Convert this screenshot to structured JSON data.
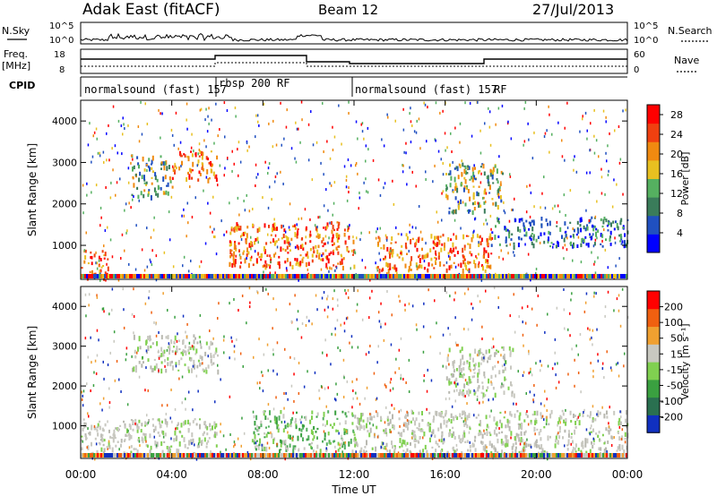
{
  "header": {
    "station": "Adak East (fitACF)",
    "beam": "Beam 12",
    "date": "27/Jul/2013"
  },
  "strip_labels": {
    "nsky": "N.Sky",
    "nsearch": "N.Search",
    "freq_line1": "Freq.",
    "freq_line2": "[MHz]",
    "nave": "Nave",
    "cpid": "CPID"
  },
  "noise_axis": {
    "top": "10^5",
    "bottom": "10^0",
    "right_top": "10^5",
    "right_bottom": "10^0"
  },
  "freq_axis": {
    "left_ticks": [
      "18",
      "8"
    ],
    "right_ticks": [
      "60",
      "0"
    ]
  },
  "cpid_segments": [
    {
      "label": "normalsound (fast) 157",
      "start_hour": 0,
      "end_hour": 6,
      "suffix": "RF"
    },
    {
      "label": "rbsp 200 RF",
      "start_hour": 6,
      "end_hour": 12
    },
    {
      "label": "normalsound (fast) 157",
      "start_hour": 12,
      "end_hour": 24,
      "suffix": "RF"
    }
  ],
  "chart_data": [
    {
      "type": "heatmap",
      "ylabel": "Slant Range [km]",
      "xlabel": "Time UT",
      "x_ticks": [
        "00:00",
        "04:00",
        "08:00",
        "12:00",
        "16:00",
        "20:00",
        "00:00"
      ],
      "y_ticks": [
        "1000",
        "2000",
        "3000",
        "4000"
      ],
      "ylim": [
        180,
        4500
      ],
      "xlim_hours": [
        0,
        24
      ],
      "colorbar": {
        "label": "Power [dB]",
        "ticks": [
          "4",
          "8",
          "12",
          "16",
          "20",
          "24",
          "28"
        ],
        "range": [
          0,
          30
        ],
        "colors": [
          "#0000ff",
          "#2050c0",
          "#3a7c5a",
          "#55b060",
          "#e8c020",
          "#f08a10",
          "#f04010",
          "#ff0000"
        ]
      },
      "echo_regions": [
        {
          "t0": 0.0,
          "t1": 1.2,
          "r0": 200,
          "r1": 900,
          "level": "high"
        },
        {
          "t0": 2.2,
          "t1": 4.0,
          "r0": 2200,
          "r1": 3200,
          "level": "medium"
        },
        {
          "t0": 4.0,
          "t1": 6.0,
          "r0": 2600,
          "r1": 3300,
          "level": "high"
        },
        {
          "t0": 6.5,
          "t1": 12.0,
          "r0": 500,
          "r1": 1600,
          "level": "high"
        },
        {
          "t0": 13.0,
          "t1": 18.0,
          "r0": 400,
          "r1": 1300,
          "level": "high"
        },
        {
          "t0": 16.0,
          "t1": 18.5,
          "r0": 1800,
          "r1": 3000,
          "level": "medium"
        },
        {
          "t0": 18.0,
          "t1": 24.0,
          "r0": 1000,
          "r1": 1700,
          "level": "low"
        }
      ]
    },
    {
      "type": "heatmap",
      "ylabel": "Slant Range [km]",
      "xlabel": "Time UT",
      "x_ticks": [
        "00:00",
        "04:00",
        "08:00",
        "12:00",
        "16:00",
        "20:00",
        "00:00"
      ],
      "y_ticks": [
        "1000",
        "2000",
        "3000",
        "4000"
      ],
      "ylim": [
        180,
        4500
      ],
      "xlim_hours": [
        0,
        24
      ],
      "colorbar": {
        "label": "Velocity [m s⁻¹]",
        "ticks": [
          "200",
          "100",
          "50",
          "15",
          "-15",
          "-50",
          "-100",
          "-200"
        ],
        "colors": [
          "#1030c0",
          "#2a7050",
          "#3aa040",
          "#80d050",
          "#c8c8c0",
          "#f0a030",
          "#f06010",
          "#ff0000"
        ]
      },
      "echo_regions": [
        {
          "t0": 0.0,
          "t1": 6.0,
          "r0": 300,
          "r1": 1200,
          "level": "gray"
        },
        {
          "t0": 2.2,
          "t1": 6.0,
          "r0": 2400,
          "r1": 3300,
          "level": "gray"
        },
        {
          "t0": 7.5,
          "t1": 12.0,
          "r0": 400,
          "r1": 1400,
          "level": "green"
        },
        {
          "t0": 12.0,
          "t1": 24.0,
          "r0": 300,
          "r1": 1400,
          "level": "gray"
        },
        {
          "t0": 16.0,
          "t1": 19.0,
          "r0": 1800,
          "r1": 3000,
          "level": "gray"
        }
      ]
    }
  ]
}
